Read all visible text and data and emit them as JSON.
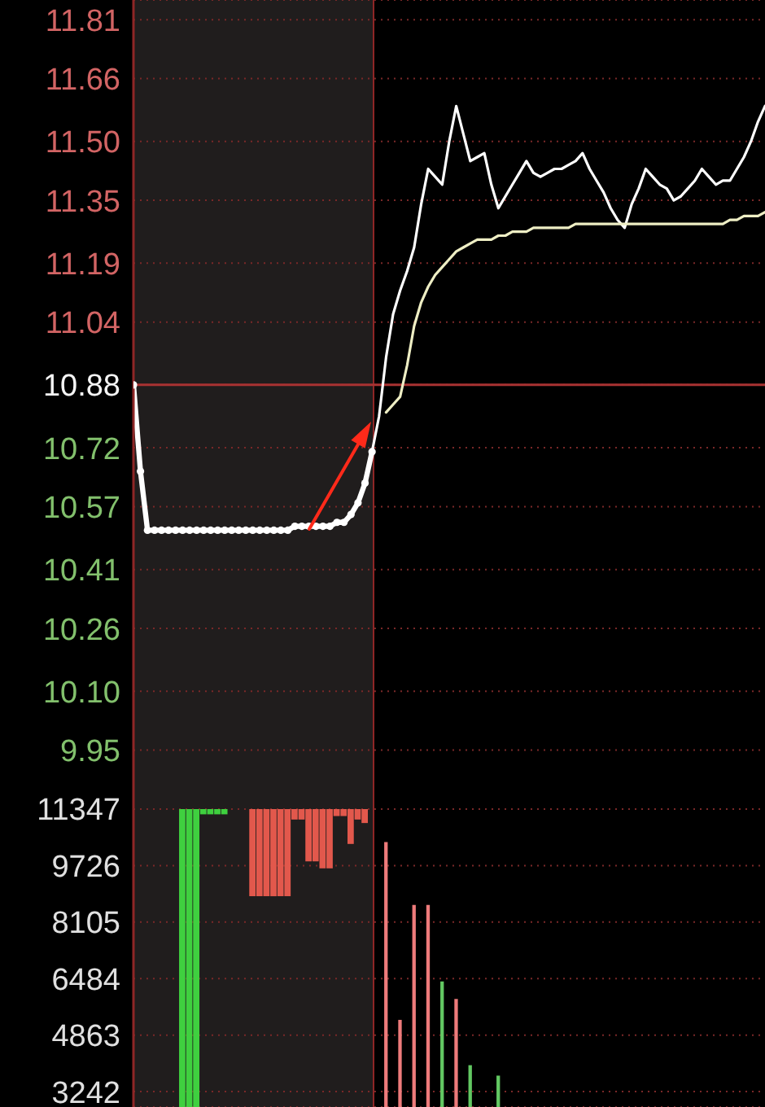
{
  "chart_data": [
    {
      "type": "line",
      "categories": [
        null,
        null,
        null,
        null,
        null,
        null,
        null,
        null,
        null,
        null,
        null,
        null,
        null,
        null,
        null,
        null,
        null,
        null,
        null,
        null,
        null,
        null,
        null,
        null,
        null,
        null,
        null,
        null,
        null,
        null,
        null,
        null,
        null,
        null,
        null,
        null,
        null,
        null,
        null,
        null,
        null,
        null,
        null,
        null,
        null,
        null,
        null,
        null,
        null,
        null,
        null,
        null,
        null,
        null,
        null,
        null,
        null,
        null,
        null,
        null,
        null,
        null,
        null,
        null,
        null,
        null,
        null,
        null,
        null,
        null,
        null,
        null,
        null,
        null,
        null,
        null,
        null,
        null,
        null,
        null,
        null,
        null,
        null,
        null,
        null,
        null,
        null,
        null,
        null,
        null,
        null
      ],
      "ylim": [
        9.8,
        11.86
      ],
      "yticks": [
        11.81,
        11.66,
        {
          "value": 11.5,
          "label": "11.50"
        },
        11.35,
        11.19,
        11.04,
        10.88,
        10.72,
        10.57,
        10.41,
        10.26,
        {
          "value": 10.1,
          "label": "10.10"
        },
        9.95
      ],
      "grid": "y",
      "tick_labels": "y",
      "ref_lines": [
        {
          "axis": "y",
          "value": 10.88,
          "color": "#a83232"
        }
      ],
      "series": [
        {
          "color": "#ffffff",
          "marker": "circle",
          "values": [
            10.88,
            10.66,
            10.51,
            10.51,
            10.51,
            10.51,
            10.51,
            10.51,
            10.51,
            10.51,
            10.51,
            10.51,
            10.51,
            10.51,
            10.51,
            10.51,
            10.51,
            10.51,
            10.51,
            10.51,
            10.51,
            10.51,
            10.51,
            10.52,
            10.52,
            10.52,
            10.52,
            10.52,
            10.52,
            10.53,
            10.53,
            10.55,
            10.58,
            10.63,
            10.71,
            null,
            null,
            null,
            null,
            null,
            null,
            null,
            null,
            null,
            null,
            null,
            null,
            null,
            null,
            null,
            null,
            null,
            null,
            null,
            null,
            null,
            null,
            null,
            null,
            null,
            null,
            null,
            null,
            null,
            null,
            null,
            null,
            null,
            null,
            null,
            null,
            null,
            null,
            null,
            null,
            null,
            null,
            null,
            null,
            null,
            null,
            null,
            null,
            null,
            null,
            null,
            null,
            null,
            null,
            null,
            null
          ]
        },
        {
          "color": "#ffffff",
          "values": [
            null,
            null,
            null,
            null,
            null,
            null,
            null,
            null,
            null,
            null,
            null,
            null,
            null,
            null,
            null,
            null,
            null,
            null,
            null,
            null,
            null,
            null,
            null,
            null,
            null,
            null,
            null,
            null,
            null,
            null,
            null,
            null,
            null,
            null,
            10.71,
            10.8,
            10.95,
            11.06,
            11.12,
            11.17,
            11.23,
            11.34,
            11.43,
            11.41,
            11.39,
            11.5,
            11.59,
            11.52,
            11.45,
            11.46,
            11.47,
            11.39,
            11.33,
            11.36,
            11.39,
            11.42,
            11.45,
            11.42,
            11.41,
            11.42,
            11.43,
            11.43,
            11.44,
            11.45,
            11.47,
            11.43,
            11.4,
            11.37,
            11.33,
            11.3,
            11.28,
            11.34,
            11.38,
            11.43,
            11.41,
            11.39,
            11.38,
            11.35,
            11.36,
            11.38,
            11.4,
            11.43,
            11.41,
            11.39,
            11.4,
            11.4,
            11.43,
            11.46,
            11.5,
            11.55,
            11.59
          ]
        },
        {
          "color": "#eeeec4",
          "values": [
            null,
            null,
            null,
            null,
            null,
            null,
            null,
            null,
            null,
            null,
            null,
            null,
            null,
            null,
            null,
            null,
            null,
            null,
            null,
            null,
            null,
            null,
            null,
            null,
            null,
            null,
            null,
            null,
            null,
            null,
            null,
            null,
            null,
            null,
            null,
            null,
            10.81,
            10.83,
            10.85,
            10.93,
            11.03,
            11.09,
            11.13,
            11.16,
            11.18,
            11.2,
            11.22,
            11.23,
            11.24,
            11.25,
            11.25,
            11.25,
            11.26,
            11.26,
            11.27,
            11.27,
            11.27,
            11.28,
            11.28,
            11.28,
            11.28,
            11.28,
            11.28,
            11.29,
            11.29,
            11.29,
            11.29,
            11.29,
            11.29,
            11.29,
            11.29,
            11.29,
            11.29,
            11.29,
            11.29,
            11.29,
            11.29,
            11.29,
            11.29,
            11.29,
            11.29,
            11.29,
            11.29,
            11.29,
            11.29,
            11.3,
            11.3,
            11.31,
            11.31,
            11.31,
            11.32
          ]
        }
      ]
    },
    {
      "type": "bar",
      "categories": [
        null,
        null,
        null,
        null,
        null,
        null,
        null,
        null,
        null,
        null,
        null,
        null,
        null,
        null,
        null,
        null,
        null,
        null,
        null,
        null,
        null,
        null,
        null,
        null,
        null,
        null,
        null,
        null,
        null,
        null,
        null,
        null,
        null,
        null,
        null,
        null,
        null,
        null,
        null,
        null,
        null,
        null,
        null,
        null,
        null,
        null,
        null,
        null,
        null,
        null,
        null,
        null,
        null,
        null,
        null,
        null,
        null,
        null,
        null,
        null,
        null,
        null,
        null,
        null,
        null,
        null,
        null,
        null,
        null,
        null,
        null,
        null,
        null,
        null,
        null,
        null,
        null,
        null,
        null,
        null,
        null,
        null,
        null,
        null,
        null,
        null,
        null,
        null,
        null,
        null,
        null
      ],
      "ylim": [
        2800,
        11347
      ],
      "yticks": [
        11347,
        9726,
        8105,
        6484,
        4863,
        3242
      ],
      "grid": "y",
      "tick_labels": "y",
      "series": [
        {
          "color": "#3fd03f",
          "values": [
            null,
            null,
            null,
            null,
            null,
            null,
            null,
            11347,
            11347,
            11347,
            null,
            null,
            null,
            null,
            null,
            null,
            null,
            null,
            null,
            null,
            null,
            null,
            null,
            null,
            null,
            null,
            null,
            null,
            null,
            null,
            null,
            null,
            null,
            null,
            null,
            null,
            null,
            null,
            null,
            null,
            null,
            null,
            null,
            null,
            null,
            null,
            null,
            null,
            null,
            null,
            null,
            null,
            null,
            null,
            null,
            null,
            null,
            null,
            null,
            null,
            null,
            null,
            null,
            null,
            null,
            null,
            null,
            null,
            null,
            null,
            null,
            null,
            null,
            null,
            null,
            null,
            null,
            null,
            null,
            null,
            null,
            null,
            null,
            null,
            null,
            null,
            null,
            null,
            null,
            null,
            null
          ]
        },
        {
          "values": [
            null,
            null,
            null,
            null,
            null,
            null,
            null,
            null,
            null,
            null,
            -150,
            -150,
            -150,
            -150,
            null,
            null,
            null,
            -2500,
            -2500,
            -2500,
            -2500,
            -2500,
            -2500,
            -300,
            -300,
            -1500,
            -1500,
            -1700,
            -1700,
            -200,
            -200,
            -1000,
            -300,
            -400,
            null,
            null,
            null,
            null,
            null,
            null,
            null,
            null,
            null,
            null,
            null,
            null,
            null,
            null,
            null,
            null,
            null,
            null,
            null,
            null,
            null,
            null,
            null,
            null,
            null,
            null,
            null,
            null,
            null,
            null,
            null,
            null,
            null,
            null,
            null,
            null,
            null,
            null,
            null,
            null,
            null,
            null,
            null,
            null,
            null,
            null,
            null,
            null,
            null,
            null,
            null,
            null,
            null,
            null,
            null,
            null,
            null
          ],
          "base": [
            null,
            null,
            null,
            null,
            null,
            null,
            null,
            null,
            null,
            null,
            11347,
            11347,
            11347,
            11347,
            null,
            null,
            null,
            11347,
            11347,
            11347,
            11347,
            11347,
            11347,
            11347,
            11347,
            11347,
            11347,
            11347,
            11347,
            11347,
            11347,
            11347,
            11347,
            11347,
            null,
            null,
            null,
            null,
            null,
            null,
            null,
            null,
            null,
            null,
            null,
            null,
            null,
            null,
            null,
            null,
            null,
            null,
            null,
            null,
            null,
            null,
            null,
            null,
            null,
            null,
            null,
            null,
            null,
            null,
            null,
            null,
            null,
            null,
            null,
            null,
            null,
            null,
            null,
            null,
            null,
            null,
            null,
            null,
            null,
            null,
            null,
            null,
            null,
            null,
            null,
            null,
            null,
            null,
            null,
            null,
            null
          ],
          "colors": [
            null,
            null,
            null,
            null,
            null,
            null,
            null,
            null,
            null,
            null,
            "#3fd03f",
            "#3fd03f",
            "#3fd03f",
            "#3fd03f",
            null,
            null,
            null,
            "#e2584c",
            "#e2584c",
            "#e2584c",
            "#e2584c",
            "#e2584c",
            "#e2584c",
            "#e2584c",
            "#e2584c",
            "#e2584c",
            "#e2584c",
            "#e2584c",
            "#e2584c",
            "#e2584c",
            "#e2584c",
            "#e2584c",
            "#e2584c",
            "#e2584c",
            null,
            null,
            null,
            null,
            null,
            null,
            null,
            null,
            null,
            null,
            null,
            null,
            null,
            null,
            null,
            null,
            null,
            null,
            null,
            null,
            null,
            null,
            null,
            null,
            null,
            null,
            null,
            null,
            null,
            null,
            null,
            null,
            null,
            null,
            null,
            null,
            null,
            null,
            null,
            null,
            null,
            null,
            null,
            null,
            null,
            null,
            null,
            null,
            null,
            null,
            null,
            null,
            null,
            null,
            null,
            null,
            null
          ]
        },
        {
          "values": [
            null,
            null,
            null,
            null,
            null,
            null,
            null,
            null,
            null,
            null,
            null,
            null,
            null,
            null,
            null,
            null,
            null,
            null,
            null,
            null,
            null,
            null,
            null,
            null,
            null,
            null,
            null,
            null,
            null,
            null,
            null,
            null,
            null,
            null,
            null,
            null,
            10400,
            null,
            5300,
            null,
            8600,
            null,
            8600,
            null,
            6400,
            null,
            5900,
            null,
            4000,
            null,
            null,
            null,
            3700,
            null,
            null,
            null,
            null,
            null,
            null,
            null,
            null,
            null,
            null,
            null,
            null,
            null,
            null,
            null,
            null,
            null,
            null,
            null,
            null,
            null,
            null,
            null,
            null,
            null,
            null,
            null,
            null,
            null,
            null,
            null,
            null,
            null,
            null,
            null,
            null,
            null,
            null
          ],
          "colors": [
            null,
            null,
            null,
            null,
            null,
            null,
            null,
            null,
            null,
            null,
            null,
            null,
            null,
            null,
            null,
            null,
            null,
            null,
            null,
            null,
            null,
            null,
            null,
            null,
            null,
            null,
            null,
            null,
            null,
            null,
            null,
            null,
            null,
            null,
            null,
            null,
            "#ee7b7b",
            null,
            "#ee7b7b",
            null,
            "#ee7b7b",
            null,
            "#ee7b7b",
            null,
            "#62c862",
            null,
            "#ee7b7b",
            null,
            "#62c862",
            null,
            null,
            null,
            "#62c862",
            null,
            null,
            null,
            null,
            null,
            null,
            null,
            null,
            null,
            null,
            null,
            null,
            null,
            null,
            null,
            null,
            null,
            null,
            null,
            null,
            null,
            null,
            null,
            null,
            null,
            null,
            null,
            null,
            null,
            null,
            null,
            null,
            null,
            null,
            null,
            null,
            null,
            null
          ]
        }
      ]
    }
  ]
}
